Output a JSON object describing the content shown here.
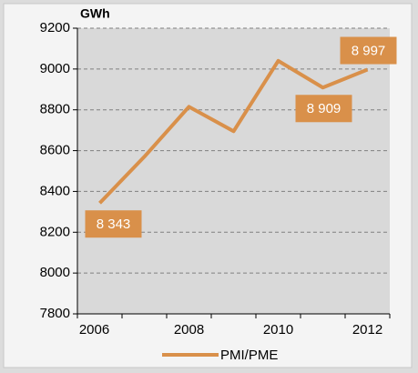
{
  "chart_data": {
    "type": "line",
    "y_axis_label": "GWh",
    "categories": [
      "2006",
      null,
      "2008",
      null,
      "2010",
      null,
      "2012"
    ],
    "series": [
      {
        "name": "PMI/PME",
        "color": "#d9904a",
        "values": [
          8343,
          8570,
          8815,
          8695,
          9040,
          8909,
          8997
        ],
        "value_labels": [
          "8 343",
          null,
          null,
          null,
          null,
          "8 909",
          "8 997"
        ]
      }
    ],
    "ylim": [
      7800,
      9200
    ],
    "yticks": [
      7800,
      8000,
      8200,
      8400,
      8600,
      8800,
      9000,
      9200
    ],
    "grid": true,
    "legend": "bottom"
  }
}
